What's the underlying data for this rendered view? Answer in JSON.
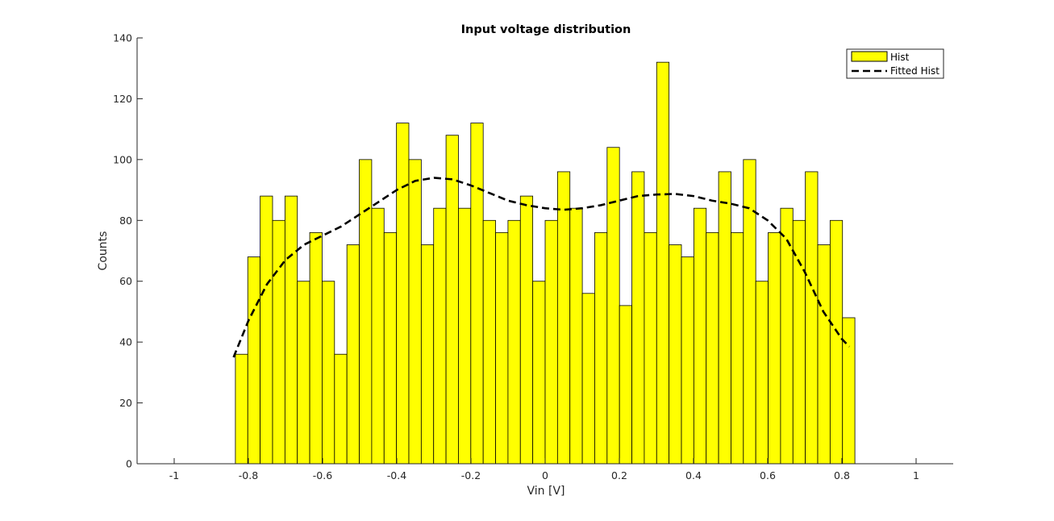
{
  "chart_data": {
    "type": "bar",
    "title": "Input voltage distribution",
    "xlabel": "Vin [V]",
    "ylabel": "Counts",
    "xlim": [
      -1.1,
      1.1
    ],
    "ylim": [
      0,
      140
    ],
    "xticks": [
      -1,
      -0.8,
      -0.6,
      -0.4,
      -0.2,
      0,
      0.2,
      0.4,
      0.6,
      0.8,
      1
    ],
    "xtick_labels": [
      "-1",
      "-0.8",
      "-0.6",
      "-0.4",
      "-0.2",
      "0",
      "0.2",
      "0.4",
      "0.6",
      "0.8",
      "1"
    ],
    "yticks": [
      0,
      20,
      40,
      60,
      80,
      100,
      120,
      140
    ],
    "ytick_labels": [
      "0",
      "20",
      "40",
      "60",
      "80",
      "100",
      "120",
      "140"
    ],
    "grid": false,
    "legend_position": "top-right",
    "bin_start": -0.835,
    "bin_width": 0.0334,
    "series": [
      {
        "name": "Hist",
        "type": "bar",
        "color": "#ffff00",
        "edge_color": "#000000",
        "values": [
          36,
          68,
          88,
          80,
          88,
          60,
          76,
          60,
          36,
          72,
          100,
          84,
          76,
          112,
          100,
          72,
          84,
          108,
          84,
          112,
          80,
          76,
          80,
          88,
          60,
          80,
          96,
          84,
          56,
          76,
          104,
          52,
          96,
          76,
          132,
          72,
          68,
          84,
          76,
          96,
          76,
          100,
          60,
          76,
          84,
          80,
          96,
          72,
          80,
          48
        ]
      },
      {
        "name": "Fitted Hist",
        "type": "line",
        "style": "dashed",
        "color": "#000000",
        "x": [
          -0.84,
          -0.8,
          -0.75,
          -0.7,
          -0.65,
          -0.6,
          -0.55,
          -0.5,
          -0.45,
          -0.4,
          -0.35,
          -0.3,
          -0.25,
          -0.2,
          -0.15,
          -0.1,
          -0.05,
          0,
          0.05,
          0.1,
          0.15,
          0.2,
          0.25,
          0.3,
          0.35,
          0.4,
          0.45,
          0.5,
          0.55,
          0.6,
          0.65,
          0.7,
          0.75,
          0.8,
          0.82
        ],
        "y": [
          35,
          47,
          59,
          67,
          72,
          75,
          78,
          82,
          86,
          90,
          93,
          94,
          93.5,
          91.5,
          89,
          86.5,
          85,
          84,
          83.5,
          84,
          85,
          86.5,
          88,
          88.5,
          88.7,
          88,
          86.5,
          85.5,
          84,
          80,
          74,
          63,
          50,
          41,
          38.5
        ]
      }
    ]
  }
}
